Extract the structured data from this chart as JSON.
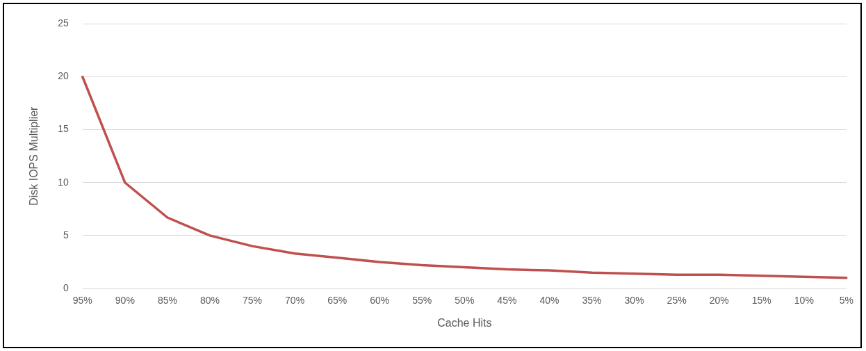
{
  "chart_data": {
    "type": "line",
    "xlabel": "Cache Hits",
    "ylabel": "Disk IOPS Multiplier",
    "categories": [
      "95%",
      "90%",
      "85%",
      "80%",
      "75%",
      "70%",
      "65%",
      "60%",
      "55%",
      "50%",
      "45%",
      "40%",
      "35%",
      "30%",
      "25%",
      "20%",
      "15%",
      "10%",
      "5%"
    ],
    "series": [
      {
        "color": "#c0504d",
        "values": [
          20,
          10,
          6.7,
          5,
          4,
          3.3,
          2.9,
          2.5,
          2.2,
          2,
          1.8,
          1.7,
          1.5,
          1.4,
          1.3,
          1.3,
          1.2,
          1.1,
          1.0
        ]
      }
    ],
    "ylim": [
      0,
      25
    ],
    "yticks": [
      0,
      5,
      10,
      15,
      20,
      25
    ],
    "grid": "y",
    "legend": false,
    "marker": "none",
    "line_style": "solid"
  }
}
